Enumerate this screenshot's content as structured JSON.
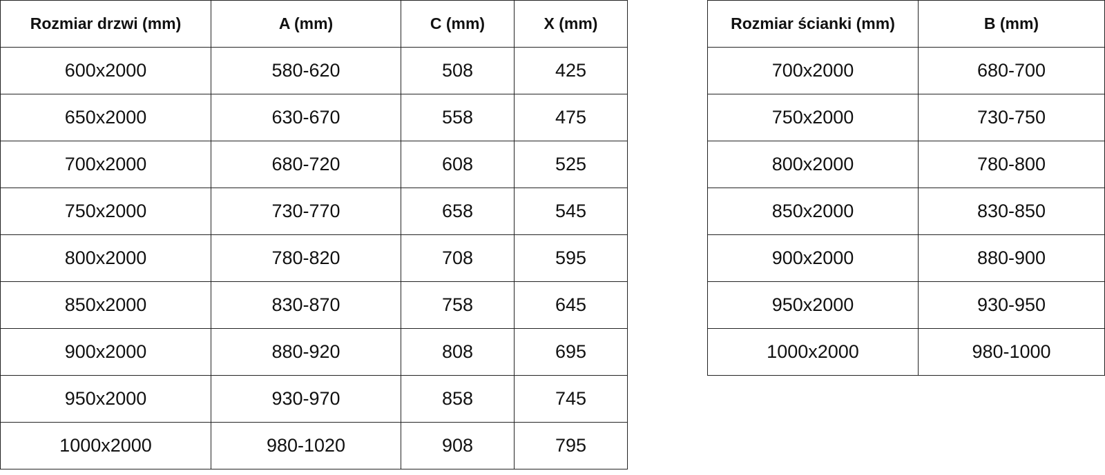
{
  "doors_table": {
    "headers": [
      "Rozmiar drzwi (mm)",
      "A (mm)",
      "C (mm)",
      "X (mm)"
    ],
    "rows": [
      [
        "600x2000",
        "580-620",
        "508",
        "425"
      ],
      [
        "650x2000",
        "630-670",
        "558",
        "475"
      ],
      [
        "700x2000",
        "680-720",
        "608",
        "525"
      ],
      [
        "750x2000",
        "730-770",
        "658",
        "545"
      ],
      [
        "800x2000",
        "780-820",
        "708",
        "595"
      ],
      [
        "850x2000",
        "830-870",
        "758",
        "645"
      ],
      [
        "900x2000",
        "880-920",
        "808",
        "695"
      ],
      [
        "950x2000",
        "930-970",
        "858",
        "745"
      ],
      [
        "1000x2000",
        "980-1020",
        "908",
        "795"
      ]
    ]
  },
  "wall_table": {
    "headers": [
      "Rozmiar ścianki (mm)",
      "B (mm)"
    ],
    "rows": [
      [
        "700x2000",
        "680-700"
      ],
      [
        "750x2000",
        "730-750"
      ],
      [
        "800x2000",
        "780-800"
      ],
      [
        "850x2000",
        "830-850"
      ],
      [
        "900x2000",
        "880-900"
      ],
      [
        "950x2000",
        "930-950"
      ],
      [
        "1000x2000",
        "980-1000"
      ]
    ]
  }
}
